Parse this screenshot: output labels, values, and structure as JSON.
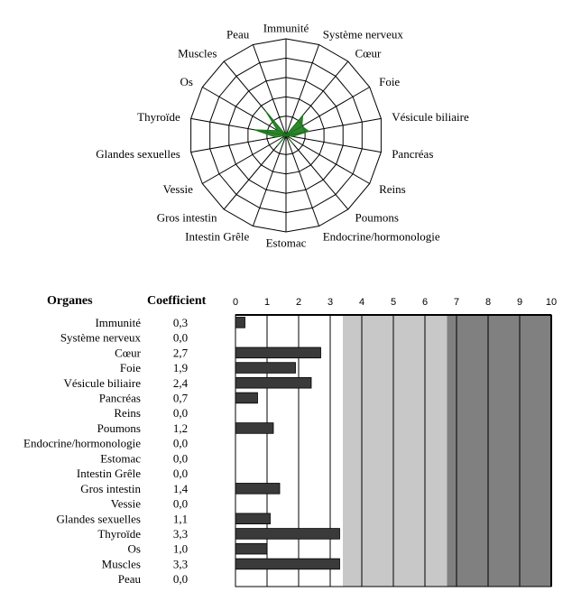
{
  "headers": {
    "organ": "Organes",
    "coefficient": "Coefficient"
  },
  "chart_data": [
    {
      "type": "radar",
      "axes": [
        "Immunité",
        "Système nerveux",
        "Cœur",
        "Foie",
        "Vésicule biliaire",
        "Pancréas",
        "Reins",
        "Poumons",
        "Endocrine/hormonologie",
        "Estomac",
        "Intestin Grêle",
        "Gros intestin",
        "Vessie",
        "Glandes sexuelles",
        "Thyroïde",
        "Os",
        "Muscles",
        "Peau"
      ],
      "values": [
        0.3,
        0.0,
        2.7,
        1.9,
        2.4,
        0.7,
        0.0,
        1.2,
        0.0,
        0.0,
        0.0,
        1.4,
        0.0,
        1.1,
        3.3,
        1.0,
        3.3,
        0.0
      ],
      "range": [
        0,
        10
      ],
      "rings": 5,
      "fill_color": "#1a7a1a",
      "grid_color": "#000000"
    },
    {
      "type": "bar",
      "orientation": "horizontal",
      "categories": [
        "Immunité",
        "Système nerveux",
        "Cœur",
        "Foie",
        "Vésicule biliaire",
        "Pancréas",
        "Reins",
        "Poumons",
        "Endocrine/hormonologie",
        "Estomac",
        "Intestin Grêle",
        "Gros intestin",
        "Vessie",
        "Glandes sexuelles",
        "Thyroïde",
        "Os",
        "Muscles",
        "Peau"
      ],
      "value_labels": [
        "0,3",
        "0,0",
        "2,7",
        "1,9",
        "2,4",
        "0,7",
        "0,0",
        "1,2",
        "0,0",
        "0,0",
        "0,0",
        "1,4",
        "0,0",
        "1,1",
        "3,3",
        "1,0",
        "3,3",
        "0,0"
      ],
      "values": [
        0.3,
        0.0,
        2.7,
        1.9,
        2.4,
        0.7,
        0.0,
        1.2,
        0.0,
        0.0,
        0.0,
        1.4,
        0.0,
        1.1,
        3.3,
        1.0,
        3.3,
        0.0
      ],
      "xlim": [
        0,
        10
      ],
      "xticks": [
        "0",
        "1",
        "2",
        "3",
        "4",
        "5",
        "6",
        "7",
        "8",
        "9",
        "10"
      ],
      "bands": [
        {
          "from": 0,
          "to": 3.4,
          "color": "#ffffff"
        },
        {
          "from": 3.4,
          "to": 6.7,
          "color": "#c8c8c8"
        },
        {
          "from": 6.7,
          "to": 10,
          "color": "#808080"
        }
      ],
      "bar_color": "#3a3a3a",
      "grid": true
    }
  ]
}
